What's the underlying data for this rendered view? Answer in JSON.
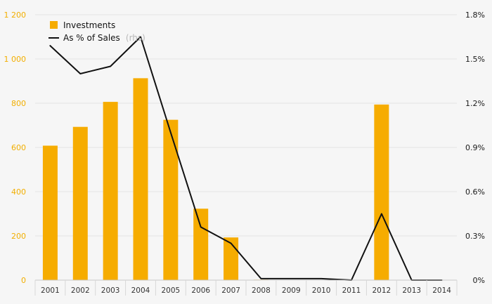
{
  "chart_data": {
    "type": "bar",
    "categories": [
      "2001",
      "2002",
      "2003",
      "2004",
      "2005",
      "2006",
      "2007",
      "2008",
      "2009",
      "2010",
      "2011",
      "2012",
      "2013",
      "2014"
    ],
    "series": [
      {
        "name": "Investments",
        "type": "bar",
        "axis": "left",
        "color": "#f6ac00",
        "values": [
          608,
          693,
          806,
          913,
          725,
          323,
          193,
          2,
          0,
          0,
          0,
          794,
          0,
          0
        ]
      },
      {
        "name": "As % of Sales",
        "name_suffix": "(rhs)",
        "type": "line",
        "axis": "right",
        "color": "#111111",
        "values": [
          1.59,
          1.4,
          1.45,
          1.65,
          1.0,
          0.36,
          0.25,
          0.01,
          0.01,
          0.01,
          0.0,
          0.45,
          0.0,
          0.0
        ]
      }
    ],
    "y_left": {
      "min": 0,
      "max": 1200,
      "ticks": [
        0,
        200,
        400,
        600,
        800,
        1000,
        1200
      ],
      "tick_labels": [
        "0",
        "200",
        "400",
        "600",
        "800",
        "1 000",
        "1 200"
      ],
      "color": "#f2ae00"
    },
    "y_right": {
      "min": 0,
      "max": 1.8,
      "ticks": [
        0,
        0.3,
        0.6,
        0.9,
        1.2,
        1.5,
        1.8
      ],
      "tick_labels": [
        "0%",
        "0.3%",
        "0.6%",
        "0.9%",
        "1.2%",
        "1.5%",
        "1.8%"
      ],
      "color": "#1a1a1a"
    },
    "legend_position": "top-left",
    "grid": true
  }
}
